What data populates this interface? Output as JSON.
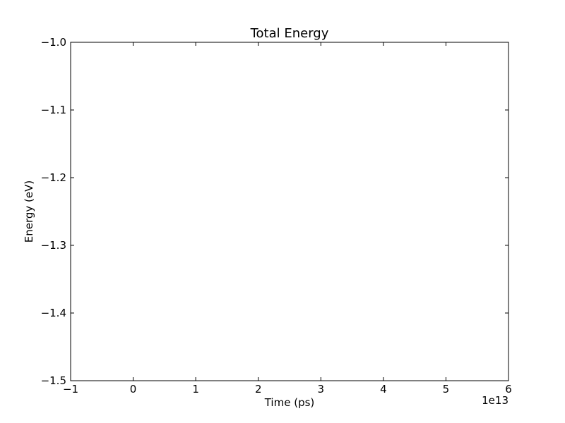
{
  "chart_data": {
    "type": "line",
    "title": "Total Energy",
    "xlabel": "Time (ps)",
    "ylabel": "Energy (eV)",
    "xlim": [
      -1,
      6
    ],
    "ylim": [
      -1.5,
      -1.0
    ],
    "x_scale_offset_label": "1e13",
    "x_ticks": [
      -1,
      0,
      1,
      2,
      3,
      4,
      5,
      6
    ],
    "x_tick_labels": [
      "−1",
      "0",
      "1",
      "2",
      "3",
      "4",
      "5",
      "6"
    ],
    "y_ticks": [
      -1.0,
      -1.1,
      -1.2,
      -1.3,
      -1.4,
      -1.5
    ],
    "y_tick_labels": [
      "−1.0",
      "−1.1",
      "−1.2",
      "−1.3",
      "−1.4",
      "−1.5"
    ],
    "grid": false,
    "series": []
  }
}
